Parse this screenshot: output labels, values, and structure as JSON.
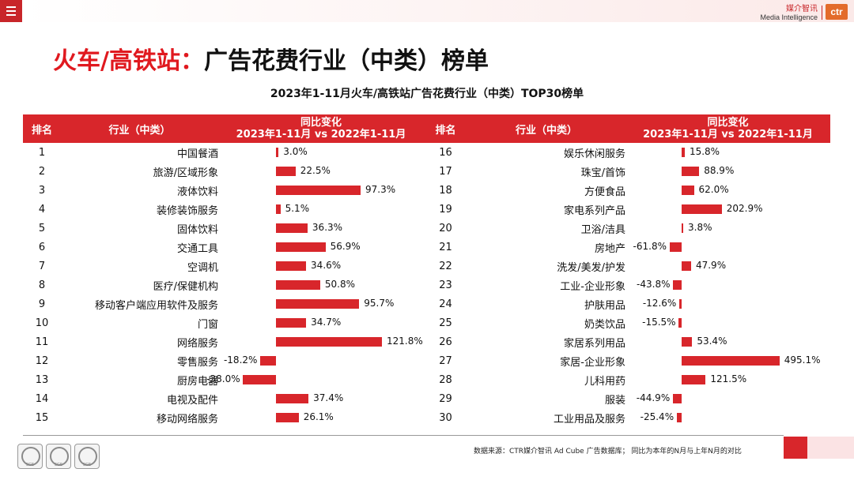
{
  "brand": {
    "cn": "媒介智讯",
    "en": "Media Intelligence",
    "logo": "ctr",
    "accent": "#d8262b"
  },
  "title": {
    "prefix": "火车/高铁站：",
    "main": "广告花费行业（中类）榜单"
  },
  "subtitle": "2023年1-11月火车/高铁站广告花费行业（中类）TOP30榜单",
  "table": {
    "header": {
      "rank": "排名",
      "industry": "行业（中类）",
      "change_line1": "同比变化",
      "change_line2": "2023年1-11月 vs 2022年1-11月"
    },
    "left": [
      {
        "rank": "1",
        "industry": "中国餐酒",
        "label": "3.0%",
        "value": 3.0
      },
      {
        "rank": "2",
        "industry": "旅游/区域形象",
        "label": "22.5%",
        "value": 22.5
      },
      {
        "rank": "3",
        "industry": "液体饮料",
        "label": "97.3%",
        "value": 97.3
      },
      {
        "rank": "4",
        "industry": "装修装饰服务",
        "label": "5.1%",
        "value": 5.1
      },
      {
        "rank": "5",
        "industry": "固体饮料",
        "label": "36.3%",
        "value": 36.3
      },
      {
        "rank": "6",
        "industry": "交通工具",
        "label": "56.9%",
        "value": 56.9
      },
      {
        "rank": "7",
        "industry": "空调机",
        "label": "34.6%",
        "value": 34.6
      },
      {
        "rank": "8",
        "industry": "医疗/保健机构",
        "label": "50.8%",
        "value": 50.8
      },
      {
        "rank": "9",
        "industry": "移动客户端应用软件及服务",
        "label": "95.7%",
        "value": 95.7
      },
      {
        "rank": "10",
        "industry": "门窗",
        "label": "34.7%",
        "value": 34.7
      },
      {
        "rank": "11",
        "industry": "网络服务",
        "label": "121.8%",
        "value": 121.8
      },
      {
        "rank": "12",
        "industry": "零售服务",
        "label": "-18.2%",
        "value": -18.2
      },
      {
        "rank": "13",
        "industry": "厨房电器",
        "label": "-38.0%",
        "value": -38.0
      },
      {
        "rank": "14",
        "industry": "电视及配件",
        "label": "37.4%",
        "value": 37.4
      },
      {
        "rank": "15",
        "industry": "移动网络服务",
        "label": "26.1%",
        "value": 26.1
      }
    ],
    "right": [
      {
        "rank": "16",
        "industry": "娱乐休闲服务",
        "label": "15.8%",
        "value": 15.8
      },
      {
        "rank": "17",
        "industry": "珠宝/首饰",
        "label": "88.9%",
        "value": 88.9
      },
      {
        "rank": "18",
        "industry": "方便食品",
        "label": "62.0%",
        "value": 62.0
      },
      {
        "rank": "19",
        "industry": "家电系列产品",
        "label": "202.9%",
        "value": 202.9
      },
      {
        "rank": "20",
        "industry": "卫浴/洁具",
        "label": "3.8%",
        "value": 3.8
      },
      {
        "rank": "21",
        "industry": "房地产",
        "label": "-61.8%",
        "value": -61.8
      },
      {
        "rank": "22",
        "industry": "洗发/美发/护发",
        "label": "47.9%",
        "value": 47.9
      },
      {
        "rank": "23",
        "industry": "工业-企业形象",
        "label": "-43.8%",
        "value": -43.8
      },
      {
        "rank": "24",
        "industry": "护肤用品",
        "label": "-12.6%",
        "value": -12.6
      },
      {
        "rank": "25",
        "industry": "奶类饮品",
        "label": "-15.5%",
        "value": -15.5
      },
      {
        "rank": "26",
        "industry": "家居系列用品",
        "label": "53.4%",
        "value": 53.4
      },
      {
        "rank": "27",
        "industry": "家居-企业形象",
        "label": "495.1%",
        "value": 495.1
      },
      {
        "rank": "28",
        "industry": "儿科用药",
        "label": "121.5%",
        "value": 121.5
      },
      {
        "rank": "29",
        "industry": "服装",
        "label": "-44.9%",
        "value": -44.9
      },
      {
        "rank": "30",
        "industry": "工业用品及服务",
        "label": "-25.4%",
        "value": -25.4
      }
    ]
  },
  "footer": {
    "source": "数据来源：CTR媒介智讯 Ad Cube 广告数据库；  同比为本年的N月与上年N月的对比",
    "badge_text": "SGS"
  }
}
